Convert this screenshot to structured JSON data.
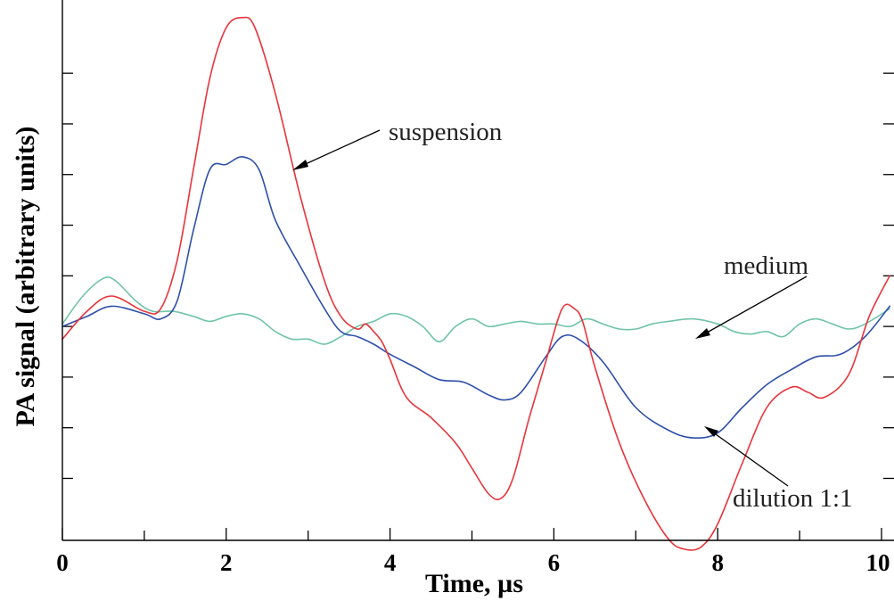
{
  "chart_data": {
    "type": "line",
    "title": "",
    "xlabel": "Time, µs",
    "ylabel": "PA signal (arbitrary units)",
    "xlim": [
      0,
      10.1
    ],
    "ylim": [
      -4.4,
      6.2
    ],
    "x_ticks": [
      0,
      2,
      4,
      6,
      8,
      10
    ],
    "x_tick_labels": [
      "0",
      "2",
      "4",
      "6",
      "8",
      "10"
    ],
    "y_ticks": [
      -3,
      -2,
      -1,
      0,
      1,
      2,
      3,
      4,
      5
    ],
    "grid": false,
    "legend": "none (curves labelled with arrows)",
    "series": [
      {
        "name": "suspension",
        "color": "#e8343a",
        "x": [
          0,
          0.3,
          0.6,
          1.0,
          1.2,
          1.4,
          1.6,
          1.8,
          2.0,
          2.2,
          2.35,
          2.6,
          2.9,
          3.2,
          3.4,
          3.6,
          3.7,
          3.8,
          3.9,
          4.0,
          4.2,
          4.5,
          4.8,
          5.0,
          5.2,
          5.35,
          5.5,
          5.7,
          5.9,
          6.1,
          6.25,
          6.35,
          6.5,
          6.8,
          7.1,
          7.4,
          7.6,
          7.8,
          8.0,
          8.3,
          8.6,
          8.9,
          9.1,
          9.3,
          9.6,
          9.85,
          10.1
        ],
        "y": [
          -0.25,
          0.3,
          0.6,
          0.3,
          0.35,
          1.3,
          3.1,
          4.9,
          5.9,
          6.1,
          5.9,
          4.6,
          2.6,
          0.9,
          0.2,
          -0.05,
          0.05,
          -0.1,
          -0.3,
          -0.65,
          -1.4,
          -1.8,
          -2.3,
          -2.8,
          -3.3,
          -3.4,
          -3.0,
          -1.8,
          -0.7,
          0.35,
          0.35,
          0.1,
          -0.8,
          -2.3,
          -3.4,
          -4.2,
          -4.4,
          -4.35,
          -3.9,
          -2.7,
          -1.6,
          -1.2,
          -1.3,
          -1.4,
          -0.95,
          0.2,
          1.0
        ]
      },
      {
        "name": "dilution 1:1",
        "color": "#2e4faa",
        "x": [
          0,
          0.3,
          0.6,
          1.0,
          1.2,
          1.4,
          1.6,
          1.8,
          2.0,
          2.2,
          2.4,
          2.6,
          2.9,
          3.2,
          3.4,
          3.6,
          3.8,
          4.0,
          4.3,
          4.6,
          4.9,
          5.2,
          5.4,
          5.6,
          5.9,
          6.1,
          6.3,
          6.6,
          7.0,
          7.4,
          7.7,
          8.0,
          8.3,
          8.6,
          8.9,
          9.2,
          9.5,
          9.8,
          10.1
        ],
        "y": [
          0,
          0.2,
          0.4,
          0.25,
          0.15,
          0.5,
          1.9,
          3.1,
          3.2,
          3.35,
          3.1,
          2.1,
          1.2,
          0.35,
          -0.1,
          -0.2,
          -0.35,
          -0.55,
          -0.8,
          -1.05,
          -1.1,
          -1.35,
          -1.45,
          -1.3,
          -0.6,
          -0.2,
          -0.25,
          -0.7,
          -1.6,
          -2.05,
          -2.2,
          -2.1,
          -1.6,
          -1.15,
          -0.85,
          -0.6,
          -0.55,
          -0.2,
          0.4
        ]
      },
      {
        "name": "medium",
        "color": "#6fc4a8",
        "x": [
          0,
          0.25,
          0.5,
          0.65,
          0.9,
          1.1,
          1.35,
          1.6,
          1.8,
          2.0,
          2.2,
          2.4,
          2.6,
          2.8,
          3.0,
          3.2,
          3.4,
          3.6,
          3.8,
          4.0,
          4.2,
          4.4,
          4.6,
          4.8,
          5.0,
          5.2,
          5.4,
          5.6,
          5.8,
          6.0,
          6.2,
          6.4,
          6.6,
          6.8,
          7.0,
          7.2,
          7.4,
          7.7,
          8.0,
          8.2,
          8.4,
          8.6,
          8.8,
          9.0,
          9.2,
          9.4,
          9.6,
          9.8,
          10.1
        ],
        "y": [
          0.05,
          0.6,
          0.95,
          0.9,
          0.5,
          0.3,
          0.3,
          0.2,
          0.1,
          0.2,
          0.25,
          0.15,
          -0.1,
          -0.25,
          -0.25,
          -0.35,
          -0.2,
          0.0,
          0.1,
          0.25,
          0.2,
          0.0,
          -0.3,
          0.0,
          0.15,
          0.0,
          0.05,
          0.1,
          0.05,
          0.05,
          0.0,
          0.15,
          0.05,
          -0.05,
          -0.05,
          0.05,
          0.1,
          0.15,
          0.05,
          -0.1,
          -0.15,
          -0.1,
          -0.2,
          0.05,
          0.15,
          0.05,
          -0.05,
          0.05,
          0.35
        ]
      }
    ],
    "annotations": [
      {
        "text": "suspension",
        "target_series": "suspension"
      },
      {
        "text": "medium",
        "target_series": "medium"
      },
      {
        "text": "dilution 1:1",
        "target_series": "dilution 1:1"
      }
    ]
  }
}
